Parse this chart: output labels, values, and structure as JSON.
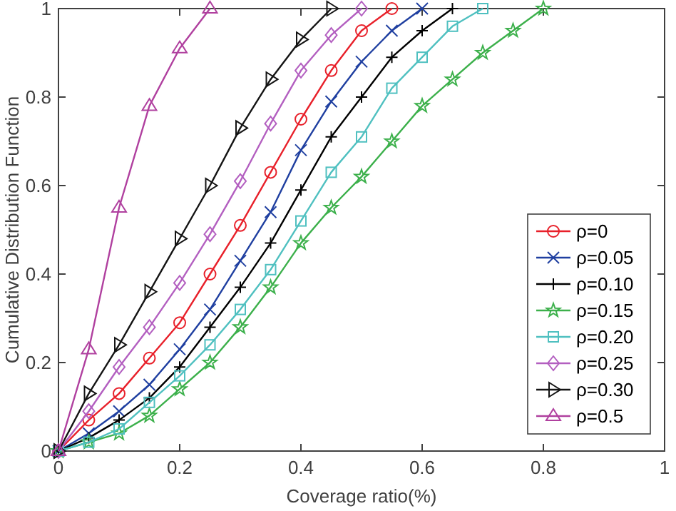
{
  "chart_data": {
    "type": "line",
    "xlabel": "Coverage ratio(%)",
    "ylabel": "Cumulative Distribution Function",
    "xlim": [
      0,
      1
    ],
    "ylim": [
      0,
      1
    ],
    "xticks": [
      0,
      0.2,
      0.4,
      0.6,
      0.8,
      1
    ],
    "yticks": [
      0,
      0.2,
      0.4,
      0.6,
      0.8,
      1
    ],
    "grid": false,
    "legend": "bottom right",
    "line_style": "solid",
    "series": [
      {
        "name": "ρ=0",
        "color": "#e8202a",
        "marker": "circle",
        "x": [
          0,
          0.05,
          0.1,
          0.15,
          0.2,
          0.25,
          0.3,
          0.35,
          0.4,
          0.45,
          0.5,
          0.55
        ],
        "values": [
          0,
          0.07,
          0.13,
          0.21,
          0.29,
          0.4,
          0.51,
          0.63,
          0.75,
          0.86,
          0.95,
          1
        ]
      },
      {
        "name": "ρ=0.05",
        "color": "#1f3fa0",
        "marker": "x",
        "x": [
          0,
          0.05,
          0.1,
          0.15,
          0.2,
          0.25,
          0.3,
          0.35,
          0.4,
          0.45,
          0.5,
          0.55,
          0.6
        ],
        "values": [
          0,
          0.04,
          0.09,
          0.15,
          0.23,
          0.32,
          0.43,
          0.54,
          0.68,
          0.79,
          0.88,
          0.95,
          1
        ]
      },
      {
        "name": "ρ=0.10",
        "color": "#000000",
        "marker": "cross",
        "x": [
          0,
          0.05,
          0.1,
          0.15,
          0.2,
          0.25,
          0.3,
          0.35,
          0.4,
          0.45,
          0.5,
          0.55,
          0.6,
          0.65
        ],
        "values": [
          0,
          0.03,
          0.07,
          0.12,
          0.19,
          0.28,
          0.37,
          0.47,
          0.59,
          0.71,
          0.8,
          0.89,
          0.95,
          1
        ]
      },
      {
        "name": "ρ=0.15",
        "color": "#3cb04b",
        "marker": "star",
        "x": [
          0,
          0.05,
          0.1,
          0.15,
          0.2,
          0.25,
          0.3,
          0.35,
          0.4,
          0.45,
          0.5,
          0.55,
          0.6,
          0.65,
          0.7,
          0.75,
          0.8
        ],
        "values": [
          0,
          0.02,
          0.04,
          0.08,
          0.14,
          0.2,
          0.28,
          0.37,
          0.47,
          0.55,
          0.62,
          0.7,
          0.78,
          0.84,
          0.9,
          0.95,
          1
        ]
      },
      {
        "name": "ρ=0.20",
        "color": "#4fc0c0",
        "marker": "square",
        "x": [
          0,
          0.05,
          0.1,
          0.15,
          0.2,
          0.25,
          0.3,
          0.35,
          0.4,
          0.45,
          0.5,
          0.55,
          0.6,
          0.65,
          0.7
        ],
        "values": [
          0,
          0.02,
          0.05,
          0.11,
          0.17,
          0.24,
          0.32,
          0.41,
          0.52,
          0.63,
          0.71,
          0.82,
          0.89,
          0.96,
          1
        ]
      },
      {
        "name": "ρ=0.25",
        "color": "#b35fc0",
        "marker": "diamond",
        "x": [
          0,
          0.05,
          0.1,
          0.15,
          0.2,
          0.25,
          0.3,
          0.35,
          0.4,
          0.45,
          0.5
        ],
        "values": [
          0,
          0.09,
          0.19,
          0.28,
          0.38,
          0.49,
          0.61,
          0.74,
          0.86,
          0.94,
          1
        ]
      },
      {
        "name": "ρ=0.30",
        "color": "#141414",
        "marker": "triangle-right",
        "x": [
          0,
          0.05,
          0.1,
          0.15,
          0.2,
          0.25,
          0.3,
          0.35,
          0.4,
          0.45
        ],
        "values": [
          0,
          0.13,
          0.24,
          0.36,
          0.48,
          0.6,
          0.73,
          0.84,
          0.93,
          1
        ]
      },
      {
        "name": "ρ=0.5",
        "color": "#b0409f",
        "marker": "triangle",
        "x": [
          0,
          0.05,
          0.1,
          0.15,
          0.2,
          0.25
        ],
        "values": [
          0,
          0.23,
          0.55,
          0.78,
          0.91,
          1
        ]
      }
    ]
  }
}
